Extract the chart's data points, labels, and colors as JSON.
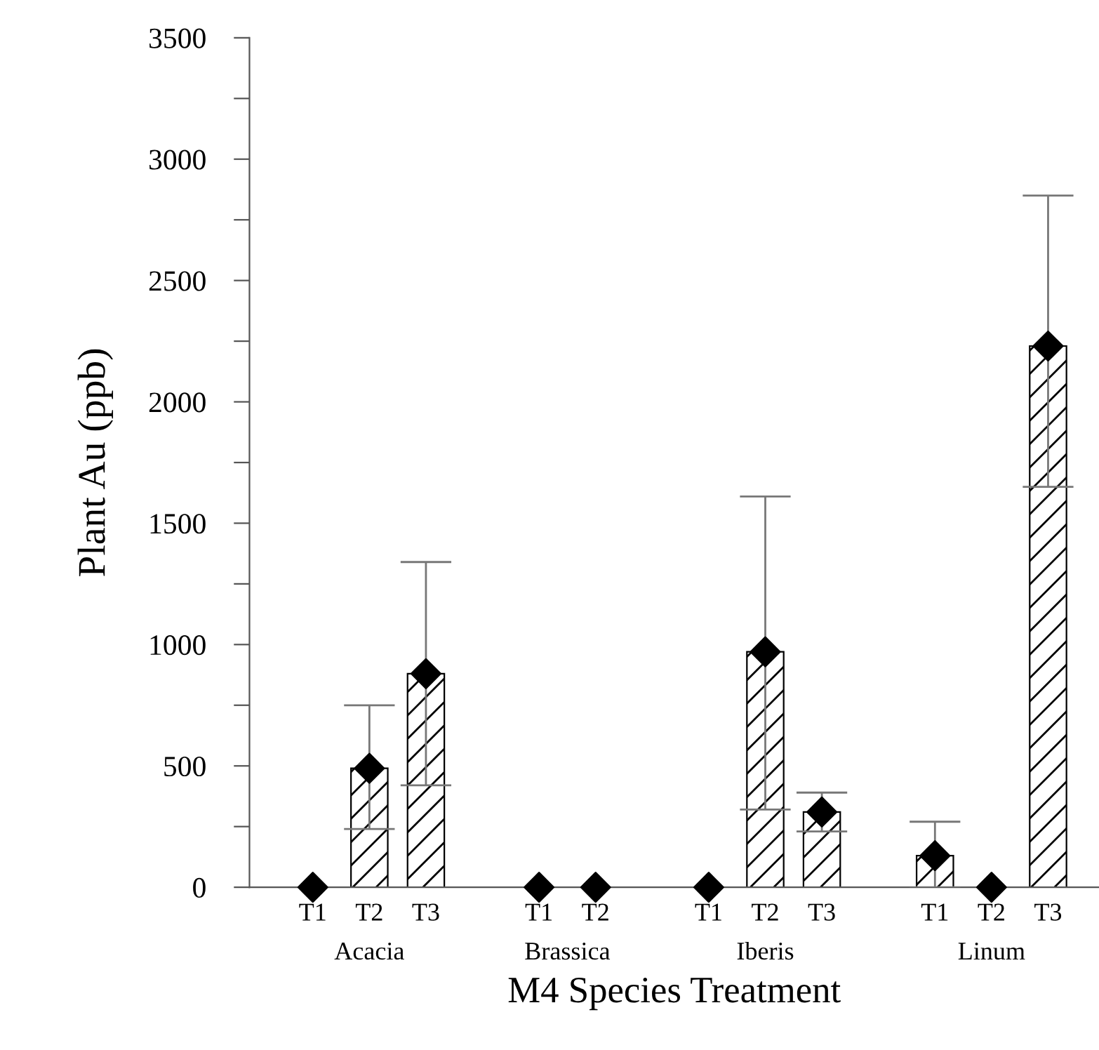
{
  "chart_data": {
    "type": "bar",
    "xlabel": "M4 Species Treatment",
    "ylabel": "Plant Au (ppb)",
    "categories": [
      "T1",
      "T2",
      "T3",
      null,
      "T1",
      "T2",
      null,
      "T1",
      "T2",
      "T3",
      null,
      "T1",
      "T2",
      "T3"
    ],
    "series": [
      {
        "color": "#000000",
        "values": [
          0,
          490,
          880,
          null,
          0,
          0,
          null,
          0,
          970,
          310,
          null,
          130,
          0,
          2230
        ],
        "errors": [
          null,
          [
            240,
            750
          ],
          [
            420,
            1340
          ],
          null,
          null,
          null,
          null,
          null,
          [
            320,
            1610
          ],
          [
            230,
            390
          ],
          null,
          [
            0,
            270
          ],
          null,
          [
            1650,
            2850
          ]
        ]
      },
      {
        "type": "scatter",
        "color": "#000000",
        "marker": "diamond",
        "values": [
          0,
          490,
          880,
          null,
          0,
          0,
          null,
          0,
          970,
          310,
          null,
          130,
          0,
          2230
        ]
      }
    ],
    "annotations": [
      "Acacia",
      "Brassica",
      "Iberis",
      "Linum"
    ],
    "ylim": [
      0,
      3500
    ],
    "yticks": [
      0,
      {
        "value": 250,
        "label": null
      },
      500,
      {
        "value": 750,
        "label": null
      },
      1000,
      {
        "value": 1250,
        "label": null
      },
      1500,
      {
        "value": 1750,
        "label": null
      },
      2000,
      {
        "value": 2250,
        "label": null
      },
      2500,
      {
        "value": 2750,
        "label": null
      },
      3000,
      {
        "value": 3250,
        "label": null
      },
      3500
    ],
    "grid": false,
    "legend": false
  }
}
